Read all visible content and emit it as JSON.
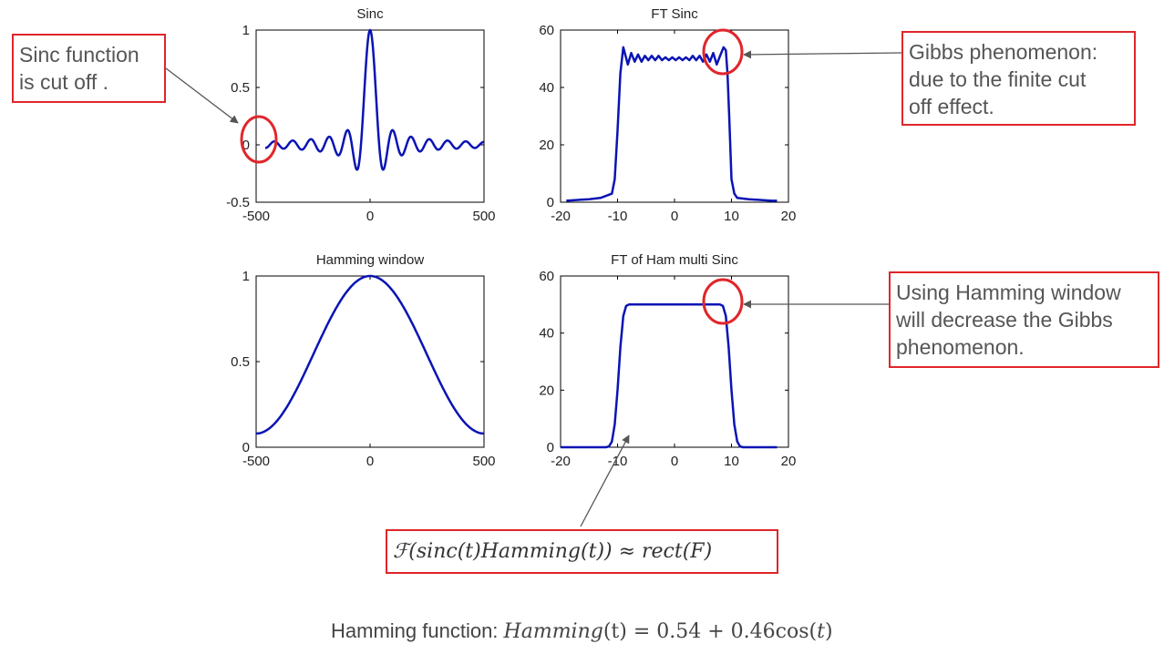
{
  "chart_data": [
    {
      "type": "line",
      "title": "Sinc",
      "xlim": [
        -500,
        500
      ],
      "ylim": [
        -0.5,
        1
      ],
      "xticks": [
        "-500",
        "0",
        "500"
      ],
      "yticks": [
        "-0.5",
        "0",
        "0.5",
        "1"
      ],
      "function": "sinc(x/40), x in [-500, 500]",
      "series_color": "#0a14b4"
    },
    {
      "type": "line",
      "title": "FT Sinc",
      "xlim": [
        -20,
        20
      ],
      "ylim": [
        0,
        60
      ],
      "xticks": [
        "-20",
        "-10",
        "0",
        "10",
        "20"
      ],
      "yticks": [
        "0",
        "20",
        "40",
        "60"
      ],
      "x": [
        -19,
        -17,
        -15,
        -13,
        -11,
        -10.5,
        -10,
        -9.5,
        -9,
        -8.6,
        -8.2,
        -7.6,
        -7,
        -6.4,
        -5.8,
        -5.2,
        -4.6,
        -4,
        -3.4,
        -2.8,
        -2.2,
        -1.6,
        -1,
        -0.4,
        0.2,
        0.8,
        1.4,
        2,
        2.6,
        3.2,
        3.8,
        4.4,
        5,
        5.6,
        6.2,
        6.8,
        7.4,
        8,
        8.6,
        9,
        9.3,
        9.6,
        10,
        10.5,
        11,
        13,
        15,
        17,
        18
      ],
      "y": [
        0.5,
        0.8,
        1.0,
        1.5,
        3.0,
        8,
        25,
        45,
        54,
        51,
        48,
        52,
        49,
        51.5,
        49,
        51,
        49.5,
        51,
        49.5,
        51,
        49.5,
        50.5,
        49.5,
        50.5,
        49.5,
        50.5,
        49.5,
        50.5,
        49.5,
        51,
        49.5,
        51,
        49,
        51.5,
        49,
        52,
        48,
        51,
        54,
        53,
        45,
        30,
        8,
        3,
        1.5,
        1.0,
        0.8,
        0.5,
        0.5
      ],
      "series_color": "#0a14b4"
    },
    {
      "type": "line",
      "title": "Hamming window",
      "xlim": [
        -500,
        500
      ],
      "ylim": [
        0,
        1
      ],
      "xticks": [
        "-500",
        "0",
        "500"
      ],
      "yticks": [
        "0",
        "0.5",
        "1"
      ],
      "function": "0.54 + 0.46cos(pi x / 500), x in [-500, 500]",
      "series_color": "#0a14b4"
    },
    {
      "type": "line",
      "title": "FT of Ham multi Sinc",
      "xlim": [
        -20,
        20
      ],
      "ylim": [
        0,
        60
      ],
      "xticks": [
        "-20",
        "-10",
        "0",
        "10",
        "20"
      ],
      "yticks": [
        "0",
        "20",
        "40",
        "60"
      ],
      "x": [
        -20,
        -12,
        -11.5,
        -11,
        -10.5,
        -10,
        -9.5,
        -9,
        -8.5,
        -8,
        0,
        7,
        8,
        8.5,
        9,
        9.5,
        10,
        10.5,
        11,
        11.5,
        12,
        18
      ],
      "y": [
        0,
        0,
        0.3,
        2,
        8,
        20,
        35,
        46,
        49.5,
        50,
        50,
        50,
        50,
        49.5,
        46,
        35,
        20,
        8,
        2,
        0.3,
        0,
        0
      ],
      "series_color": "#0a14b4"
    }
  ],
  "annotations": {
    "sinc_cut_off": [
      "Sinc function",
      "is cut off ."
    ],
    "gibbs": [
      "Gibbs phenomenon:",
      "due to the finite cut",
      "off effect."
    ],
    "hamming_decrease": [
      "Using Hamming window",
      "will decrease the Gibbs",
      "phenomenon."
    ],
    "formula": "ℱ(sinc(t)Hamming(t)) ≈ rect(F)"
  },
  "footer": {
    "label": "Hamming function: ",
    "formula_lhs": "Hamming",
    "formula_arg": "(t) = ",
    "formula_rhs": "0.54 + 0.46cos(",
    "formula_rhs_var": "t",
    "formula_rhs_end": ")"
  },
  "colors": {
    "line": "#0a14b4",
    "highlight": "#e0262b",
    "arrow": "#555555"
  }
}
